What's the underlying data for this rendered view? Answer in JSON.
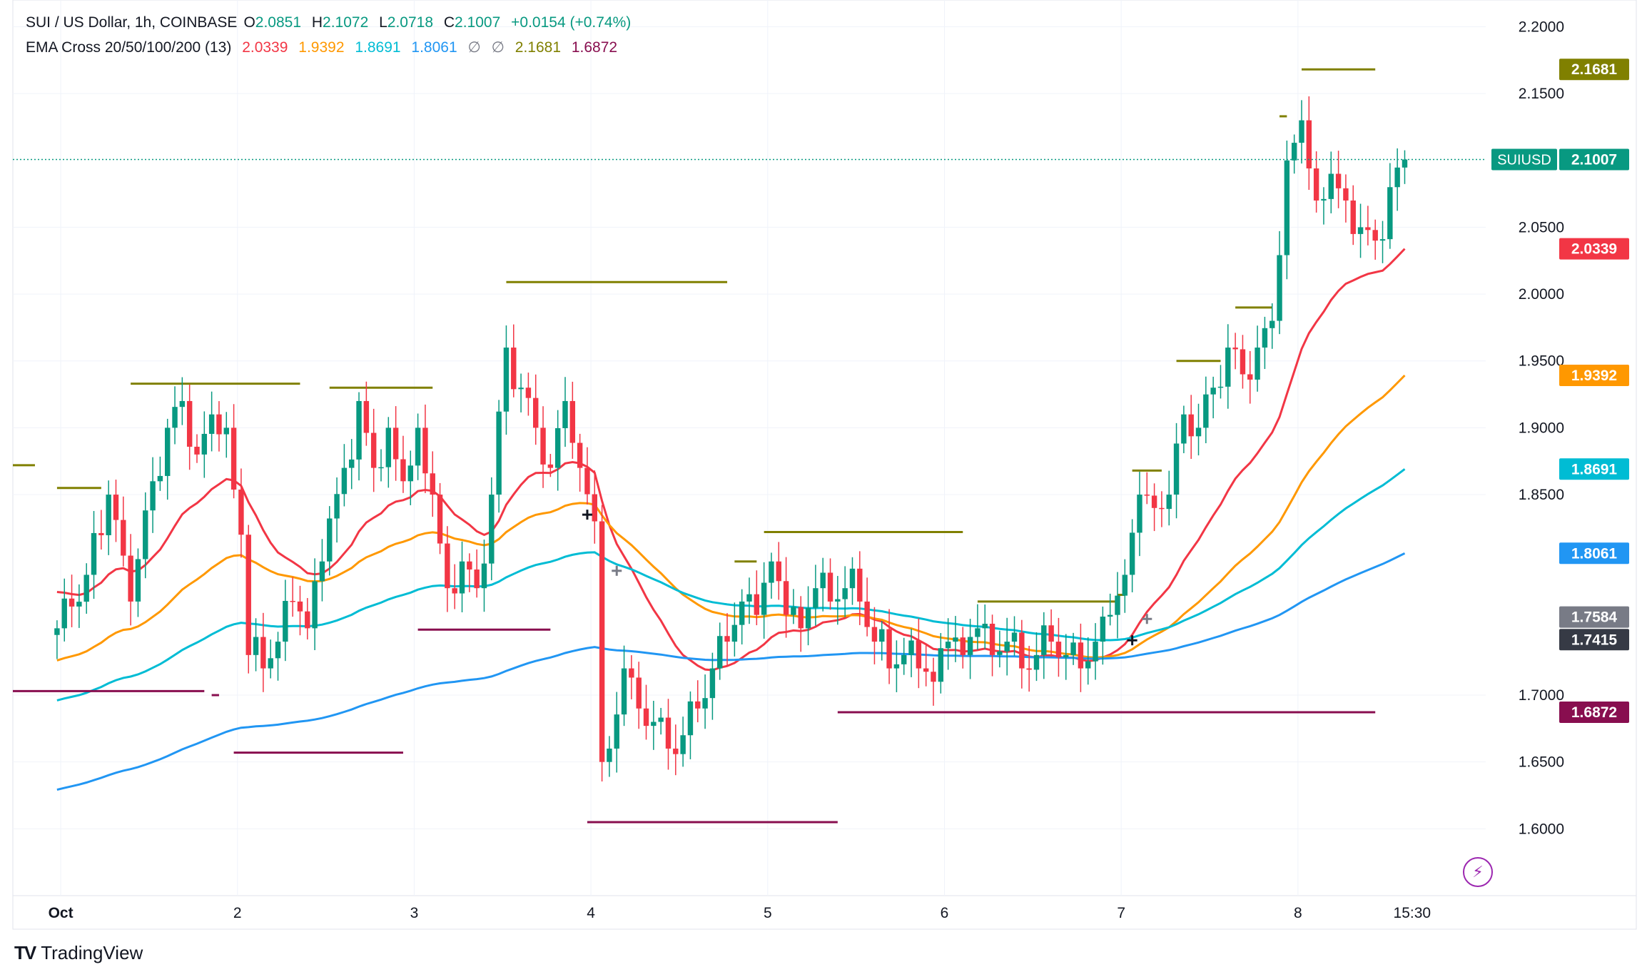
{
  "header": {
    "symbol": "SUI / US Dollar, 1h, COINBASE",
    "o_label": "O",
    "o": "2.0851",
    "h_label": "H",
    "h": "2.1072",
    "l_label": "L",
    "l": "2.0718",
    "c_label": "C",
    "c": "2.1007",
    "change": "+0.0154 (+0.74%)",
    "ema_name": "EMA Cross 20/50/100/200 (13)",
    "ema20": "2.0339",
    "ema50": "1.9392",
    "ema100": "1.8691",
    "ema200": "1.8061",
    "null1": "∅",
    "null2": "∅",
    "cross_high": "2.1681",
    "cross_low": "1.6872"
  },
  "colors": {
    "up": "#089981",
    "down": "#f23645",
    "ema20": "#f23645",
    "ema50": "#ff9800",
    "ema100": "#00bcd4",
    "ema200": "#2196f3",
    "high_level": "#808000",
    "low_level": "#880e4f",
    "symbol_label": "#089981",
    "dark_label": "#363a45",
    "gray_label": "#787b86"
  },
  "chart_data": {
    "type": "candlestick",
    "title": "SUI / US Dollar, 1h, COINBASE",
    "x_ticks": [
      {
        "label": "Oct",
        "x": 0.5
      },
      {
        "label": "2",
        "x": 24.5
      },
      {
        "label": "3",
        "x": 48.5
      },
      {
        "label": "4",
        "x": 72.5
      },
      {
        "label": "5",
        "x": 96.5
      },
      {
        "label": "6",
        "x": 120.5
      },
      {
        "label": "7",
        "x": 144.5
      },
      {
        "label": "8",
        "x": 168.5
      },
      {
        "label": "15:30",
        "x": 184
      }
    ],
    "x_range": [
      -6,
      194
    ],
    "y_ticks": [
      "2.2000",
      "2.1500",
      "2.0500",
      "2.0000",
      "1.9500",
      "1.9000",
      "1.8500",
      "1.7000",
      "1.6500",
      "1.6000"
    ],
    "y_range": [
      1.55,
      2.22
    ],
    "price_labels": [
      {
        "text": "2.1681",
        "value": 2.1681,
        "color": "#808000"
      },
      {
        "text": "SUIUSD",
        "value": 2.1007,
        "color": "#089981",
        "is_symbol": true
      },
      {
        "text": "2.1007",
        "value": 2.1007,
        "color": "#089981"
      },
      {
        "text": "2.0339",
        "value": 2.0339,
        "color": "#f23645"
      },
      {
        "text": "1.9392",
        "value": 1.9392,
        "color": "#ff9800"
      },
      {
        "text": "1.8691",
        "value": 1.8691,
        "color": "#00bcd4"
      },
      {
        "text": "1.8061",
        "value": 1.8061,
        "color": "#2196f3"
      },
      {
        "text": "1.7584",
        "value": 1.7584,
        "color": "#787b86"
      },
      {
        "text": "1.7415",
        "value": 1.7415,
        "color": "#363a45"
      },
      {
        "text": "1.6872",
        "value": 1.6872,
        "color": "#880e4f"
      }
    ],
    "last_price": 2.1007,
    "close_anchors": [
      [
        0,
        1.75
      ],
      [
        4,
        1.79
      ],
      [
        7,
        1.85
      ],
      [
        10,
        1.77
      ],
      [
        13,
        1.86
      ],
      [
        15,
        1.9
      ],
      [
        17,
        1.92
      ],
      [
        19,
        1.88
      ],
      [
        21,
        1.91
      ],
      [
        23,
        1.9
      ],
      [
        25,
        1.82
      ],
      [
        26,
        1.73
      ],
      [
        28,
        1.72
      ],
      [
        30,
        1.74
      ],
      [
        32,
        1.77
      ],
      [
        34,
        1.75
      ],
      [
        36,
        1.8
      ],
      [
        39,
        1.87
      ],
      [
        41,
        1.92
      ],
      [
        43,
        1.87
      ],
      [
        45,
        1.9
      ],
      [
        47,
        1.86
      ],
      [
        49,
        1.9
      ],
      [
        51,
        1.85
      ],
      [
        53,
        1.78
      ],
      [
        55,
        1.8
      ],
      [
        57,
        1.78
      ],
      [
        59,
        1.85
      ],
      [
        61,
        1.96
      ],
      [
        63,
        1.93
      ],
      [
        65,
        1.9
      ],
      [
        67,
        1.87
      ],
      [
        69,
        1.92
      ],
      [
        71,
        1.87
      ],
      [
        73,
        1.83
      ],
      [
        74,
        1.65
      ],
      [
        75,
        1.66
      ],
      [
        77,
        1.72
      ],
      [
        79,
        1.69
      ],
      [
        81,
        1.68
      ],
      [
        83,
        1.66
      ],
      [
        85,
        1.67
      ],
      [
        87,
        1.69
      ],
      [
        89,
        1.72
      ],
      [
        91,
        1.74
      ],
      [
        93,
        1.77
      ],
      [
        95,
        1.76
      ],
      [
        97,
        1.8
      ],
      [
        99,
        1.76
      ],
      [
        101,
        1.75
      ],
      [
        103,
        1.78
      ],
      [
        105,
        1.77
      ],
      [
        107,
        1.78
      ],
      [
        109,
        1.77
      ],
      [
        111,
        1.74
      ],
      [
        113,
        1.72
      ],
      [
        115,
        1.73
      ],
      [
        117,
        1.72
      ],
      [
        119,
        1.71
      ],
      [
        121,
        1.74
      ],
      [
        123,
        1.73
      ],
      [
        125,
        1.75
      ],
      [
        127,
        1.73
      ],
      [
        129,
        1.74
      ],
      [
        131,
        1.72
      ],
      [
        133,
        1.73
      ],
      [
        135,
        1.74
      ],
      [
        137,
        1.73
      ],
      [
        139,
        1.72
      ],
      [
        141,
        1.74
      ],
      [
        143,
        1.76
      ],
      [
        145,
        1.79
      ],
      [
        147,
        1.85
      ],
      [
        149,
        1.84
      ],
      [
        151,
        1.85
      ],
      [
        153,
        1.91
      ],
      [
        155,
        1.9
      ],
      [
        157,
        1.93
      ],
      [
        159,
        1.96
      ],
      [
        161,
        1.94
      ],
      [
        163,
        1.96
      ],
      [
        165,
        1.98
      ],
      [
        167,
        2.1
      ],
      [
        169,
        2.13
      ],
      [
        171,
        2.07
      ],
      [
        173,
        2.09
      ],
      [
        175,
        2.07
      ],
      [
        177,
        2.05
      ],
      [
        179,
        2.04
      ],
      [
        181,
        2.08
      ],
      [
        183,
        2.1007
      ]
    ],
    "ema_periods": [
      20,
      50,
      100,
      200
    ],
    "ema_start": {
      "ema20": 1.78,
      "ema50": 1.725,
      "ema100": 1.695,
      "ema200": 1.628
    },
    "ema_end": {
      "ema20": 2.0339,
      "ema50": 1.9392,
      "ema100": 1.8691,
      "ema200": 1.8061
    },
    "swing_high_lines": [
      {
        "x1": -6,
        "x2": -3,
        "y": 1.872
      },
      {
        "x1": 0,
        "x2": 6,
        "y": 1.855
      },
      {
        "x1": 10,
        "x2": 33,
        "y": 1.933
      },
      {
        "x1": 37,
        "x2": 51,
        "y": 1.93
      },
      {
        "x1": 61,
        "x2": 91,
        "y": 2.009
      },
      {
        "x1": 92,
        "x2": 95,
        "y": 1.8
      },
      {
        "x1": 96,
        "x2": 123,
        "y": 1.822
      },
      {
        "x1": 125,
        "x2": 144,
        "y": 1.77
      },
      {
        "x1": 144,
        "x2": 145,
        "y": 1.775
      },
      {
        "x1": 146,
        "x2": 150,
        "y": 1.868
      },
      {
        "x1": 152,
        "x2": 158,
        "y": 1.95
      },
      {
        "x1": 160,
        "x2": 165,
        "y": 1.99
      },
      {
        "x1": 166,
        "x2": 167,
        "y": 2.133
      },
      {
        "x1": 169,
        "x2": 179,
        "y": 2.1681
      }
    ],
    "swing_low_lines": [
      {
        "x1": -6,
        "x2": 20,
        "y": 1.703
      },
      {
        "x1": 21,
        "x2": 22,
        "y": 1.7
      },
      {
        "x1": 24,
        "x2": 47,
        "y": 1.657
      },
      {
        "x1": 49,
        "x2": 67,
        "y": 1.749
      },
      {
        "x1": 72,
        "x2": 106,
        "y": 1.605
      },
      {
        "x1": 106,
        "x2": 179,
        "y": 1.6872
      }
    ],
    "cross_marks": [
      {
        "x": 72,
        "y": 1.835,
        "color": "#131722"
      },
      {
        "x": 76,
        "y": 1.793,
        "color": "#787b86"
      },
      {
        "x": 146,
        "y": 1.741,
        "color": "#131722"
      },
      {
        "x": 148,
        "y": 1.757,
        "color": "#787b86"
      }
    ]
  },
  "brand": {
    "text": "TradingView",
    "logo": "TV",
    "icon": "tradingview-logo-icon"
  },
  "tools": {
    "bolt_icon": "lightning-bolt-icon",
    "bolt_glyph": "⚡"
  }
}
